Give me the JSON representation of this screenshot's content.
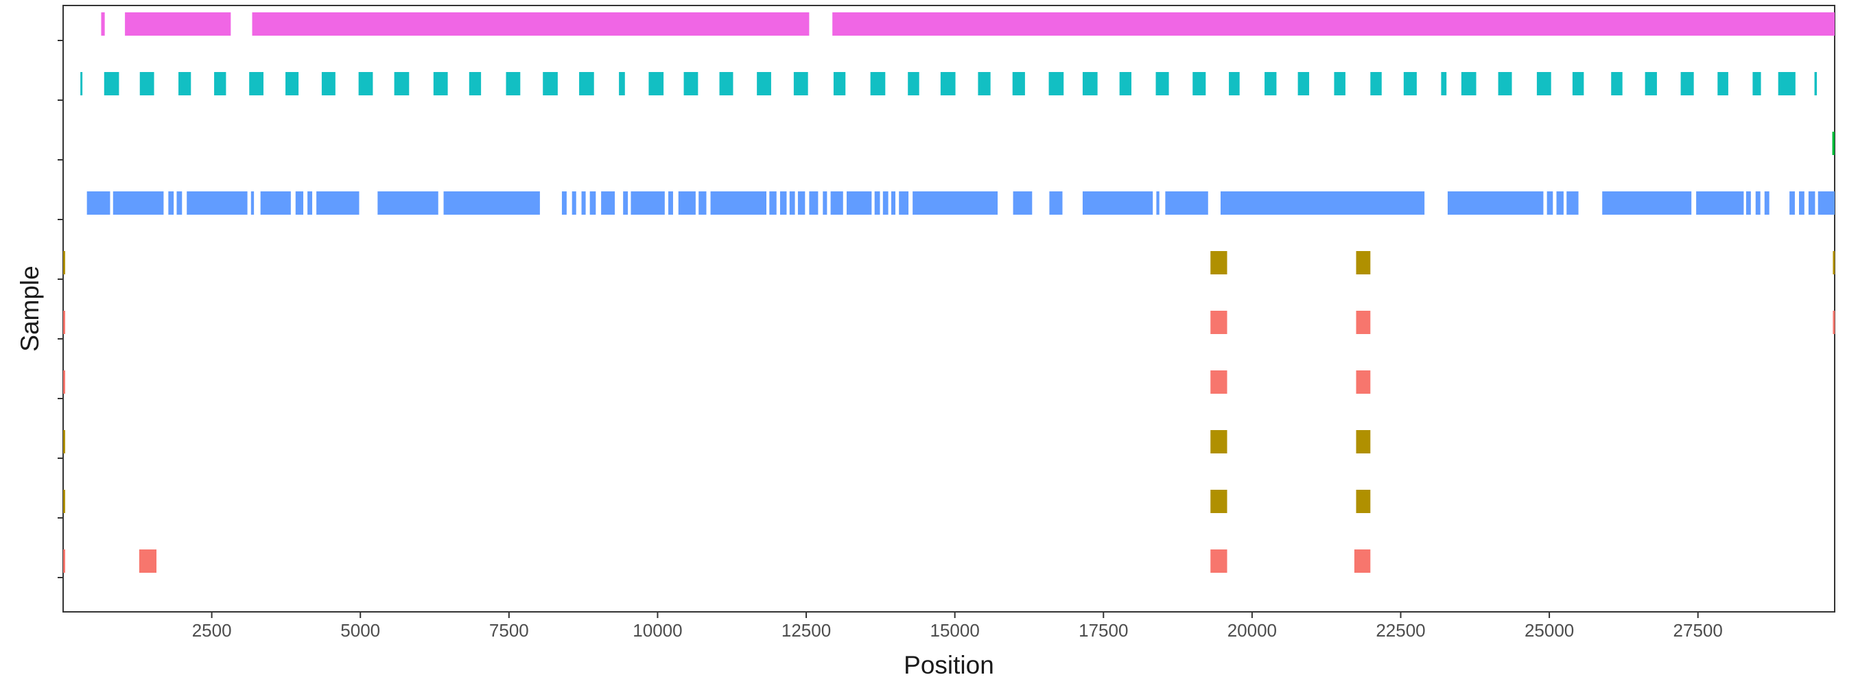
{
  "chart_data": {
    "type": "segment",
    "xlabel": "Position",
    "ylabel": "Sample",
    "xlim": [
      0,
      29800
    ],
    "x_ticks": [
      2500,
      5000,
      7500,
      10000,
      12500,
      15000,
      17500,
      20000,
      22500,
      25000,
      27500
    ],
    "x_tick_labels": [
      "2500",
      "5000",
      "7500",
      "10000",
      "12500",
      "15000",
      "17500",
      "20000",
      "22500",
      "25000",
      "27500"
    ],
    "y_tick_labels": [],
    "grid": false,
    "legend": "none",
    "rows": [
      {
        "color": "#f066e5",
        "segments": [
          [
            640,
            700
          ],
          [
            1040,
            2820
          ],
          [
            3180,
            12550
          ],
          [
            12940,
            29800
          ]
        ]
      },
      {
        "color": "#12bfc3",
        "segments": [
          [
            290,
            320
          ],
          [
            690,
            940
          ],
          [
            1290,
            1530
          ],
          [
            1940,
            2150
          ],
          [
            2540,
            2740
          ],
          [
            3130,
            3370
          ],
          [
            3740,
            3960
          ],
          [
            4350,
            4580
          ],
          [
            4970,
            5210
          ],
          [
            5570,
            5820
          ],
          [
            6230,
            6470
          ],
          [
            6830,
            7030
          ],
          [
            7450,
            7690
          ],
          [
            8070,
            8320
          ],
          [
            8680,
            8930
          ],
          [
            9350,
            9450
          ],
          [
            9850,
            10100
          ],
          [
            10440,
            10680
          ],
          [
            11040,
            11270
          ],
          [
            11670,
            11910
          ],
          [
            12290,
            12530
          ],
          [
            12960,
            13160
          ],
          [
            13580,
            13830
          ],
          [
            14210,
            14400
          ],
          [
            14760,
            15010
          ],
          [
            15390,
            15600
          ],
          [
            15970,
            16180
          ],
          [
            16580,
            16830
          ],
          [
            17150,
            17400
          ],
          [
            17770,
            17970
          ],
          [
            18380,
            18600
          ],
          [
            19000,
            19220
          ],
          [
            19610,
            19790
          ],
          [
            20210,
            20410
          ],
          [
            20770,
            20960
          ],
          [
            21380,
            21570
          ],
          [
            21990,
            22180
          ],
          [
            22550,
            22770
          ],
          [
            23180,
            23270
          ],
          [
            23520,
            23770
          ],
          [
            24140,
            24370
          ],
          [
            24790,
            25030
          ],
          [
            25390,
            25580
          ],
          [
            26040,
            26230
          ],
          [
            26610,
            26810
          ],
          [
            27210,
            27430
          ],
          [
            27830,
            28010
          ],
          [
            28420,
            28560
          ],
          [
            28850,
            29140
          ],
          [
            29460,
            29500
          ]
        ]
      },
      {
        "color": "#00ba38",
        "segments": [
          [
            29760,
            29800
          ]
        ]
      },
      {
        "color": "#619cff",
        "segments": [
          [
            400,
            790
          ],
          [
            840,
            1690
          ],
          [
            1770,
            1860
          ],
          [
            1910,
            2000
          ],
          [
            2080,
            3100
          ],
          [
            3160,
            3210
          ],
          [
            3320,
            3830
          ],
          [
            3910,
            4040
          ],
          [
            4110,
            4190
          ],
          [
            4260,
            4980
          ],
          [
            5290,
            6310
          ],
          [
            6400,
            8020
          ],
          [
            8390,
            8470
          ],
          [
            8560,
            8630
          ],
          [
            8720,
            8790
          ],
          [
            8860,
            8960
          ],
          [
            9050,
            9280
          ],
          [
            9420,
            9500
          ],
          [
            9550,
            10120
          ],
          [
            10180,
            10260
          ],
          [
            10350,
            10640
          ],
          [
            10690,
            10820
          ],
          [
            10890,
            11830
          ],
          [
            11880,
            12000
          ],
          [
            12060,
            12170
          ],
          [
            12220,
            12310
          ],
          [
            12360,
            12480
          ],
          [
            12550,
            12700
          ],
          [
            12780,
            12850
          ],
          [
            12910,
            13120
          ],
          [
            13180,
            13600
          ],
          [
            13650,
            13740
          ],
          [
            13790,
            13880
          ],
          [
            13930,
            14000
          ],
          [
            14060,
            14220
          ],
          [
            14290,
            15720
          ],
          [
            15980,
            16300
          ],
          [
            16590,
            16810
          ],
          [
            17150,
            18330
          ],
          [
            18390,
            18440
          ],
          [
            18540,
            19260
          ],
          [
            19470,
            22900
          ],
          [
            23290,
            24900
          ],
          [
            24960,
            25060
          ],
          [
            25120,
            25240
          ],
          [
            25290,
            25490
          ],
          [
            25890,
            27390
          ],
          [
            27470,
            28270
          ],
          [
            28310,
            28390
          ],
          [
            28470,
            28550
          ],
          [
            28620,
            28700
          ],
          [
            29040,
            29130
          ],
          [
            29200,
            29290
          ],
          [
            29360,
            29470
          ],
          [
            29520,
            29800
          ]
        ]
      },
      {
        "color": "#b09000",
        "segments": [
          [
            0,
            30
          ],
          [
            19300,
            19580
          ],
          [
            21750,
            21990
          ],
          [
            29770,
            29800
          ]
        ]
      },
      {
        "color": "#f7766d",
        "segments": [
          [
            0,
            30
          ],
          [
            19300,
            19580
          ],
          [
            21750,
            21990
          ],
          [
            29770,
            29800
          ]
        ]
      },
      {
        "color": "#f7766d",
        "segments": [
          [
            0,
            30
          ],
          [
            19300,
            19580
          ],
          [
            21750,
            21990
          ]
        ]
      },
      {
        "color": "#b09000",
        "segments": [
          [
            0,
            30
          ],
          [
            19300,
            19580
          ],
          [
            21750,
            21990
          ]
        ]
      },
      {
        "color": "#b09000",
        "segments": [
          [
            0,
            30
          ],
          [
            19300,
            19580
          ],
          [
            21750,
            21990
          ]
        ]
      },
      {
        "color": "#f7766d",
        "segments": [
          [
            0,
            30
          ],
          [
            1280,
            1570
          ],
          [
            19300,
            19580
          ],
          [
            21720,
            21990
          ]
        ]
      }
    ]
  }
}
